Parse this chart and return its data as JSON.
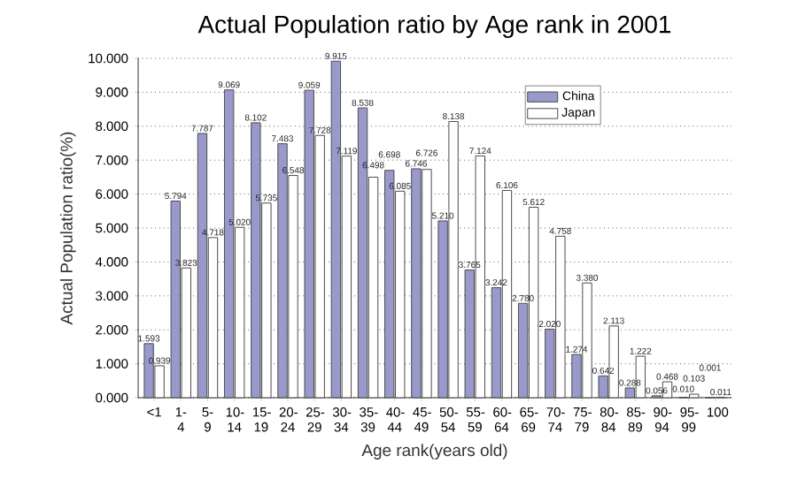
{
  "chart_data": {
    "type": "bar",
    "title": "Actual Population ratio by Age rank in 2001",
    "xlabel": "Age rank(years old)",
    "ylabel": "Actual Population ratio(%)",
    "categories": [
      "<1",
      "1-4",
      "5-9",
      "10-14",
      "15-19",
      "20-24",
      "25-29",
      "30-34",
      "35-39",
      "40-44",
      "45-49",
      "50-54",
      "55-59",
      "60-64",
      "65-69",
      "70-74",
      "75-79",
      "80-84",
      "85-89",
      "90-94",
      "95-99",
      "100"
    ],
    "series": [
      {
        "name": "China",
        "color": "#9999cc",
        "values": [
          1.593,
          5.794,
          7.787,
          9.069,
          8.102,
          7.483,
          9.059,
          9.915,
          8.538,
          6.698,
          6.746,
          5.21,
          3.765,
          3.242,
          2.78,
          2.02,
          1.274,
          0.642,
          0.288,
          0.056,
          0.01,
          0.001
        ],
        "value_labels": [
          "1.593",
          "5.794",
          "7.787",
          "9.069",
          "8.102",
          "7.483",
          "9.059",
          "9.915",
          "8.538",
          "6.698",
          "6.746",
          "5.210",
          "3.765",
          "3.242",
          "2.780",
          "2.020",
          "1.274",
          "0.642",
          "0.288",
          "0.056",
          "0.010",
          "0.001"
        ]
      },
      {
        "name": "Japan",
        "color": "#ffffff",
        "values": [
          0.939,
          3.823,
          4.718,
          5.02,
          5.735,
          6.548,
          7.728,
          7.119,
          6.498,
          6.085,
          6.726,
          8.138,
          7.124,
          6.106,
          5.612,
          4.758,
          3.38,
          2.113,
          1.222,
          0.468,
          0.103,
          0.011
        ],
        "value_labels": [
          "0.939",
          "3.823",
          "4.718",
          "5.020",
          "5.735",
          "6.548",
          "7.728",
          "7.119",
          "6.498",
          "6.085",
          "6.726",
          "8.138",
          "7.124",
          "6.106",
          "5.612",
          "4.758",
          "3.380",
          "2.113",
          "1.222",
          "0.468",
          "0.103",
          "0.011"
        ]
      }
    ],
    "ylim": [
      0,
      10
    ],
    "yticks": [
      {
        "value": 0,
        "label": "0.000"
      },
      {
        "value": 1,
        "label": "1.000"
      },
      {
        "value": 2,
        "label": "2.000"
      },
      {
        "value": 3,
        "label": "3.000"
      },
      {
        "value": 4,
        "label": "4.000"
      },
      {
        "value": 5,
        "label": "5.000"
      },
      {
        "value": 6,
        "label": "6.000"
      },
      {
        "value": 7,
        "label": "7.000"
      },
      {
        "value": 8,
        "label": "8.000"
      },
      {
        "value": 9,
        "label": "9.000"
      },
      {
        "value": 10,
        "label": "10.000"
      }
    ],
    "grid": "y",
    "legend": "top right"
  }
}
